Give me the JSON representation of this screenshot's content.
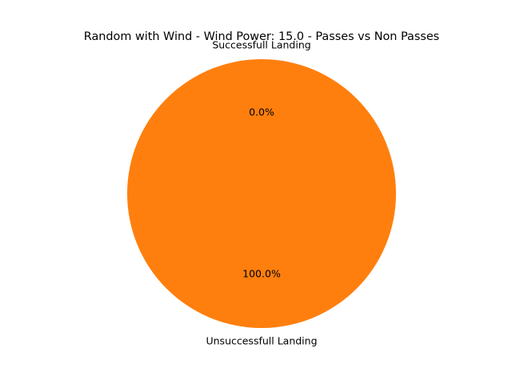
{
  "chart_data": {
    "type": "pie",
    "title": "Random with Wind - Wind Power: 15.0 - Passes vs Non Passes",
    "labels": [
      "Successfull Landing",
      "Unsuccessfull Landing"
    ],
    "values": [
      0,
      100
    ],
    "percent_labels": [
      "0.0%",
      "100.0%"
    ],
    "colors": [
      "#1f77b4",
      "#ff7f0e"
    ],
    "start_angle": 90,
    "counterclockwise": true,
    "legend": "none"
  }
}
